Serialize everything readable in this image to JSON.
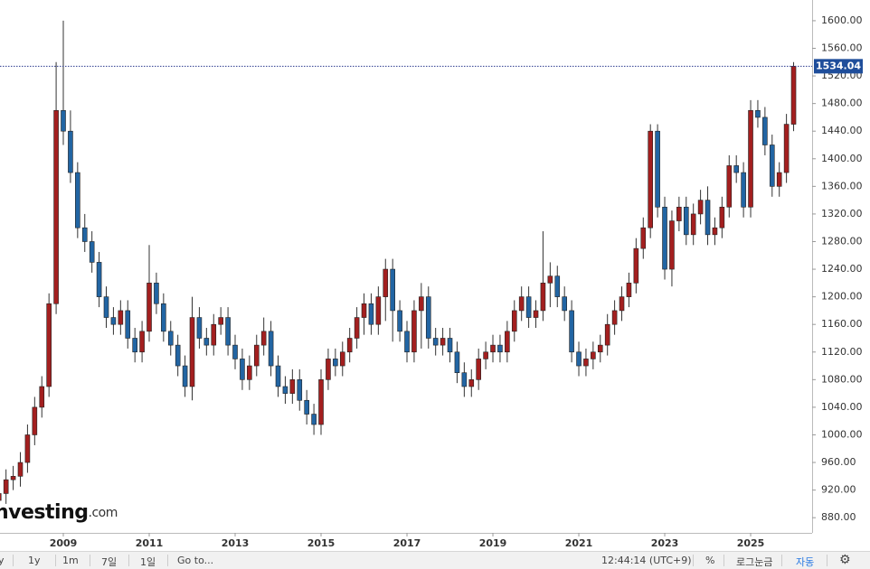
{
  "chart_data": {
    "type": "candlestick",
    "categories": [
      null,
      null,
      null,
      null,
      null,
      null,
      null,
      null,
      null,
      "2009",
      null,
      null,
      null,
      null,
      null,
      null,
      null,
      null,
      null,
      null,
      null,
      "2011",
      null,
      null,
      null,
      null,
      null,
      null,
      null,
      null,
      null,
      null,
      null,
      "2013",
      null,
      null,
      null,
      null,
      null,
      null,
      null,
      null,
      null,
      null,
      null,
      "2015",
      null,
      null,
      null,
      null,
      null,
      null,
      null,
      null,
      null,
      null,
      null,
      "2017",
      null,
      null,
      null,
      null,
      null,
      null,
      null,
      null,
      null,
      null,
      null,
      "2019",
      null,
      null,
      null,
      null,
      null,
      null,
      null,
      null,
      null,
      null,
      null,
      "2021",
      null,
      null,
      null,
      null,
      null,
      null,
      null,
      null,
      null,
      null,
      null,
      "2023",
      null,
      null,
      null,
      null,
      null,
      null,
      null,
      null,
      null,
      null,
      null,
      "2025",
      null,
      null,
      null,
      null,
      null,
      null
    ],
    "open": [
      905,
      915,
      935,
      940,
      960,
      1000,
      1040,
      1070,
      1190,
      1470,
      1440,
      1380,
      1300,
      1280,
      1250,
      1200,
      1170,
      1160,
      1180,
      1140,
      1120,
      1150,
      1220,
      1190,
      1150,
      1130,
      1100,
      1070,
      1170,
      1140,
      1130,
      1160,
      1170,
      1130,
      1110,
      1080,
      1100,
      1130,
      1150,
      1100,
      1070,
      1060,
      1080,
      1050,
      1030,
      1015,
      1080,
      1110,
      1100,
      1120,
      1140,
      1170,
      1190,
      1160,
      1200,
      1240,
      1180,
      1150,
      1120,
      1180,
      1200,
      1140,
      1130,
      1140,
      1120,
      1090,
      1070,
      1080,
      1110,
      1120,
      1130,
      1120,
      1150,
      1180,
      1200,
      1170,
      1180,
      1220,
      1230,
      1200,
      1180,
      1120,
      1100,
      1110,
      1120,
      1130,
      1160,
      1180,
      1200,
      1220,
      1270,
      1300,
      1440,
      1330,
      1240,
      1310,
      1330,
      1290,
      1320,
      1340,
      1290,
      1300,
      1330,
      1390,
      1380,
      1330,
      1470,
      1460,
      1420,
      1360,
      1380,
      1450
    ],
    "high": [
      930,
      950,
      955,
      975,
      1015,
      1055,
      1085,
      1205,
      1540,
      1600,
      1470,
      1395,
      1320,
      1295,
      1265,
      1215,
      1185,
      1195,
      1195,
      1155,
      1165,
      1275,
      1235,
      1205,
      1165,
      1145,
      1115,
      1200,
      1185,
      1155,
      1175,
      1185,
      1185,
      1145,
      1125,
      1115,
      1145,
      1170,
      1165,
      1115,
      1085,
      1095,
      1095,
      1065,
      1045,
      1095,
      1125,
      1125,
      1135,
      1155,
      1185,
      1205,
      1205,
      1215,
      1255,
      1255,
      1195,
      1165,
      1195,
      1220,
      1215,
      1155,
      1155,
      1155,
      1135,
      1105,
      1095,
      1125,
      1135,
      1145,
      1145,
      1165,
      1195,
      1215,
      1215,
      1195,
      1295,
      1250,
      1245,
      1215,
      1195,
      1135,
      1125,
      1135,
      1145,
      1175,
      1195,
      1215,
      1235,
      1285,
      1315,
      1450,
      1450,
      1345,
      1325,
      1345,
      1345,
      1335,
      1355,
      1360,
      1315,
      1345,
      1405,
      1405,
      1395,
      1485,
      1485,
      1475,
      1435,
      1395,
      1465,
      1540
    ],
    "low": [
      890,
      900,
      920,
      925,
      945,
      985,
      1025,
      1055,
      1175,
      1420,
      1365,
      1285,
      1265,
      1235,
      1185,
      1155,
      1145,
      1145,
      1125,
      1105,
      1105,
      1135,
      1175,
      1135,
      1115,
      1085,
      1055,
      1050,
      1125,
      1115,
      1115,
      1145,
      1115,
      1095,
      1065,
      1065,
      1085,
      1115,
      1085,
      1055,
      1045,
      1045,
      1035,
      1015,
      1000,
      1000,
      1065,
      1085,
      1085,
      1105,
      1125,
      1145,
      1145,
      1145,
      1165,
      1135,
      1135,
      1105,
      1105,
      1125,
      1125,
      1115,
      1115,
      1105,
      1075,
      1055,
      1055,
      1065,
      1095,
      1105,
      1105,
      1105,
      1135,
      1165,
      1155,
      1155,
      1165,
      1185,
      1185,
      1165,
      1105,
      1085,
      1085,
      1095,
      1105,
      1115,
      1145,
      1165,
      1185,
      1205,
      1255,
      1285,
      1315,
      1225,
      1215,
      1295,
      1275,
      1275,
      1305,
      1275,
      1275,
      1285,
      1315,
      1365,
      1315,
      1315,
      1445,
      1405,
      1345,
      1345,
      1365,
      1440
    ],
    "close": [
      915,
      935,
      940,
      960,
      1000,
      1040,
      1070,
      1190,
      1470,
      1440,
      1380,
      1300,
      1280,
      1250,
      1200,
      1170,
      1160,
      1180,
      1140,
      1120,
      1150,
      1220,
      1190,
      1150,
      1130,
      1100,
      1070,
      1170,
      1140,
      1130,
      1160,
      1170,
      1130,
      1110,
      1080,
      1100,
      1130,
      1150,
      1100,
      1070,
      1060,
      1080,
      1050,
      1030,
      1015,
      1080,
      1110,
      1100,
      1120,
      1140,
      1170,
      1190,
      1160,
      1200,
      1240,
      1180,
      1150,
      1120,
      1180,
      1200,
      1140,
      1130,
      1140,
      1120,
      1090,
      1070,
      1080,
      1110,
      1120,
      1130,
      1120,
      1150,
      1180,
      1200,
      1170,
      1180,
      1220,
      1230,
      1200,
      1180,
      1120,
      1100,
      1110,
      1120,
      1130,
      1160,
      1180,
      1200,
      1220,
      1270,
      1300,
      1440,
      1330,
      1240,
      1310,
      1330,
      1290,
      1320,
      1340,
      1290,
      1300,
      1330,
      1390,
      1380,
      1330,
      1470,
      1460,
      1420,
      1360,
      1380,
      1450,
      1534.04
    ],
    "up_color": "#a31f1f",
    "down_color": "#2265a3",
    "ylim": [
      858,
      1630
    ],
    "yticks": [
      {
        "value": 880,
        "label": "880.00"
      },
      {
        "value": 920,
        "label": "920.00"
      },
      {
        "value": 960,
        "label": "960.00"
      },
      {
        "value": 1000,
        "label": "1000.00"
      },
      {
        "value": 1040,
        "label": "1040.00"
      },
      {
        "value": 1080,
        "label": "1080.00"
      },
      {
        "value": 1120,
        "label": "1120.00"
      },
      {
        "value": 1160,
        "label": "1160.00"
      },
      {
        "value": 1200,
        "label": "1200.00"
      },
      {
        "value": 1240,
        "label": "1240.00"
      },
      {
        "value": 1280,
        "label": "1280.00"
      },
      {
        "value": 1320,
        "label": "1320.00"
      },
      {
        "value": 1360,
        "label": "1360.00"
      },
      {
        "value": 1400,
        "label": "1400.00"
      },
      {
        "value": 1440,
        "label": "1440.00"
      },
      {
        "value": 1480,
        "label": "1480.00"
      },
      {
        "value": 1520,
        "label": "1520.00"
      },
      {
        "value": 1560,
        "label": "1560.00"
      },
      {
        "value": 1600,
        "label": "1600.00"
      }
    ],
    "grid": false,
    "watermark": {
      "brand": "nvesting",
      "suffix": ".com"
    }
  },
  "toolbar": {
    "ranges": [
      "y",
      "1y",
      "1m",
      "7일",
      "1일"
    ],
    "goto": "Go to...",
    "time": "12:44:14 (UTC+9)",
    "percent": "%",
    "log": "로그눈금",
    "auto": "자동"
  }
}
